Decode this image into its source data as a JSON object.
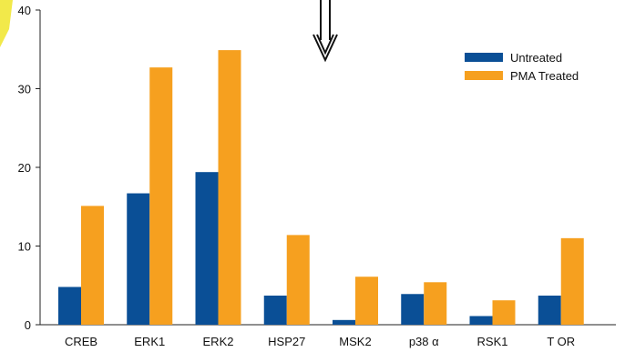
{
  "chart_data": {
    "type": "bar",
    "categories": [
      "CREB",
      "ERK1",
      "ERK2",
      "HSP27",
      "MSK2",
      "p38  α",
      "RSK1",
      "T OR"
    ],
    "series": [
      {
        "name": "Untreated",
        "values": [
          4.8,
          16.7,
          19.4,
          3.7,
          0.6,
          3.9,
          1.1,
          3.7
        ],
        "color": "#0a4f96"
      },
      {
        "name": "PMA Treated",
        "values": [
          15.1,
          32.7,
          34.9,
          11.4,
          6.1,
          5.4,
          3.1,
          11.0
        ],
        "color": "#f6a01f"
      }
    ],
    "ylim": [
      0,
      40
    ],
    "yticks": [
      0,
      10,
      20,
      30,
      40
    ],
    "grid": false,
    "legend_position": "top-right",
    "annotation": "down-arrow",
    "accent_color": "#f2e94a"
  }
}
